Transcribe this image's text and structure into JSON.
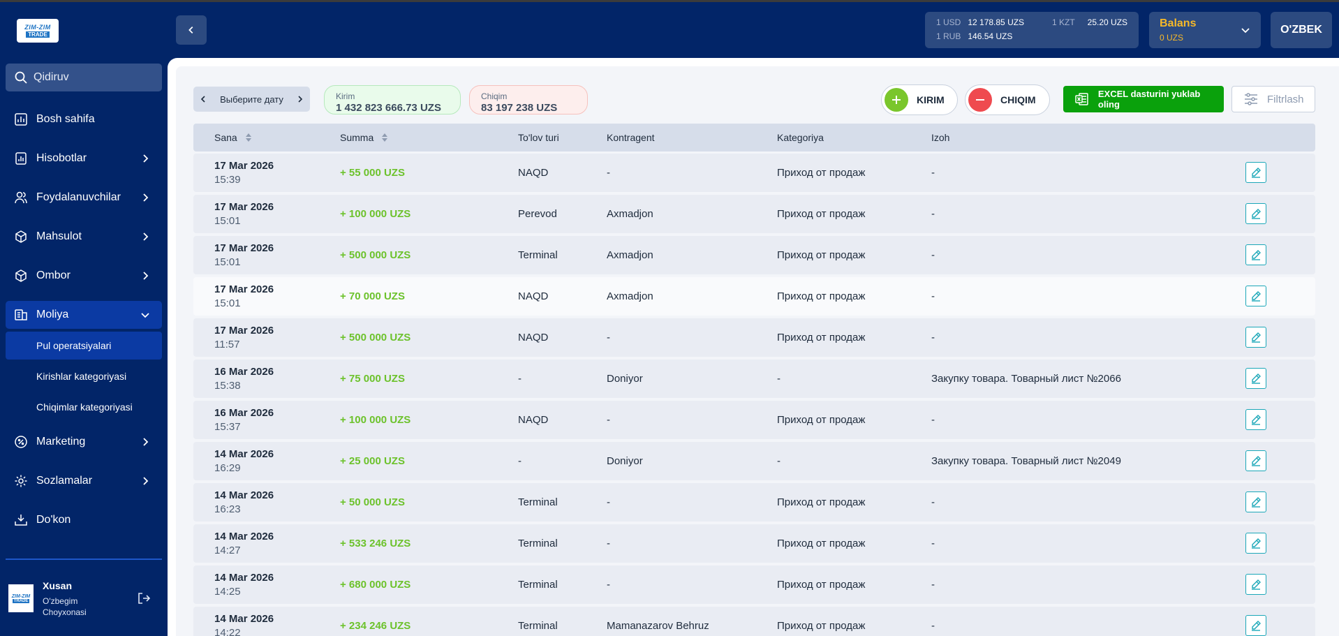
{
  "sidebar": {
    "logo_top": "ZIM-ZIM",
    "logo_bottom": "TRADE",
    "search_placeholder": "Qidiruv",
    "items": [
      {
        "label": "Bosh sahifa"
      },
      {
        "label": "Hisobotlar"
      },
      {
        "label": "Foydalanuvchilar"
      },
      {
        "label": "Mahsulot"
      },
      {
        "label": "Ombor"
      },
      {
        "label": "Moliya"
      },
      {
        "label": "Marketing"
      },
      {
        "label": "Sozlamalar"
      },
      {
        "label": "Do'kon"
      }
    ],
    "moliya_sub": [
      {
        "label": "Pul operatsiyalari"
      },
      {
        "label": "Kirishlar kategoriyasi"
      },
      {
        "label": "Chiqimlar kategoriyasi"
      }
    ],
    "profile": {
      "name": "Xusan",
      "shop": "O'zbegim Choyxonasi"
    }
  },
  "header": {
    "rates": [
      {
        "key": "1 USD",
        "value": "12 178.85 UZS"
      },
      {
        "key": "1 KZT",
        "value": "25.20 UZS"
      },
      {
        "key": "1 RUB",
        "value": "146.54 UZS"
      }
    ],
    "balans_title": "Balans",
    "balans_value": "0 UZS",
    "language": "O'ZBEK"
  },
  "toolbar": {
    "date_label": "Выберите дату",
    "kirim_label": "Kirim",
    "kirim_value": "1 432 823 666.73 UZS",
    "chiqim_label": "Chiqim",
    "chiqim_value": "83 197 238 UZS",
    "kirim_button": "KIRIM",
    "chiqim_button": "CHIQIM",
    "excel_button": "EXCEL dasturini yuklab oling",
    "filter_button": "Filtrlash"
  },
  "table": {
    "headers": {
      "date": "Sana",
      "sum": "Summa",
      "pay": "To'lov turi",
      "contra": "Kontragent",
      "cat": "Kategoriya",
      "note": "Izoh"
    },
    "rows": [
      {
        "date": "17 Mar 2026",
        "time": "15:39",
        "sum": "+ 55 000 UZS",
        "pay": "NAQD",
        "contra": "-",
        "cat": "Приход от продаж",
        "note": "-"
      },
      {
        "date": "17 Mar 2026",
        "time": "15:01",
        "sum": "+ 100 000 UZS",
        "pay": "Perevod",
        "contra": "Axmadjon",
        "cat": "Приход от продаж",
        "note": "-"
      },
      {
        "date": "17 Mar 2026",
        "time": "15:01",
        "sum": "+ 500 000 UZS",
        "pay": "Terminal",
        "contra": "Axmadjon",
        "cat": "Приход от продаж",
        "note": "-"
      },
      {
        "date": "17 Mar 2026",
        "time": "15:01",
        "sum": "+ 70 000 UZS",
        "pay": "NAQD",
        "contra": "Axmadjon",
        "cat": "Приход от продаж",
        "note": "-"
      },
      {
        "date": "17 Mar 2026",
        "time": "11:57",
        "sum": "+ 500 000 UZS",
        "pay": "NAQD",
        "contra": "-",
        "cat": "Приход от продаж",
        "note": "-"
      },
      {
        "date": "16 Mar 2026",
        "time": "15:38",
        "sum": "+ 75 000 UZS",
        "pay": "-",
        "contra": "Doniyor",
        "cat": "-",
        "note": "Закупку товара. Товарный лист №2066"
      },
      {
        "date": "16 Mar 2026",
        "time": "15:37",
        "sum": "+ 100 000 UZS",
        "pay": "NAQD",
        "contra": "-",
        "cat": "Приход от продаж",
        "note": "-"
      },
      {
        "date": "14 Mar 2026",
        "time": "16:29",
        "sum": "+ 25 000 UZS",
        "pay": "-",
        "contra": "Doniyor",
        "cat": "-",
        "note": "Закупку товара. Товарный лист №2049"
      },
      {
        "date": "14 Mar 2026",
        "time": "16:23",
        "sum": "+ 50 000 UZS",
        "pay": "Terminal",
        "contra": "-",
        "cat": "Приход от продаж",
        "note": "-"
      },
      {
        "date": "14 Mar 2026",
        "time": "14:27",
        "sum": "+ 533 246 UZS",
        "pay": "Terminal",
        "contra": "-",
        "cat": "Приход от продаж",
        "note": "-"
      },
      {
        "date": "14 Mar 2026",
        "time": "14:25",
        "sum": "+ 680 000 UZS",
        "pay": "Terminal",
        "contra": "-",
        "cat": "Приход от продаж",
        "note": "-"
      },
      {
        "date": "14 Mar 2026",
        "time": "14:22",
        "sum": "+ 234 246 UZS",
        "pay": "Terminal",
        "contra": "Mamanazarov Behruz",
        "cat": "Приход от продаж",
        "note": "-"
      }
    ]
  }
}
